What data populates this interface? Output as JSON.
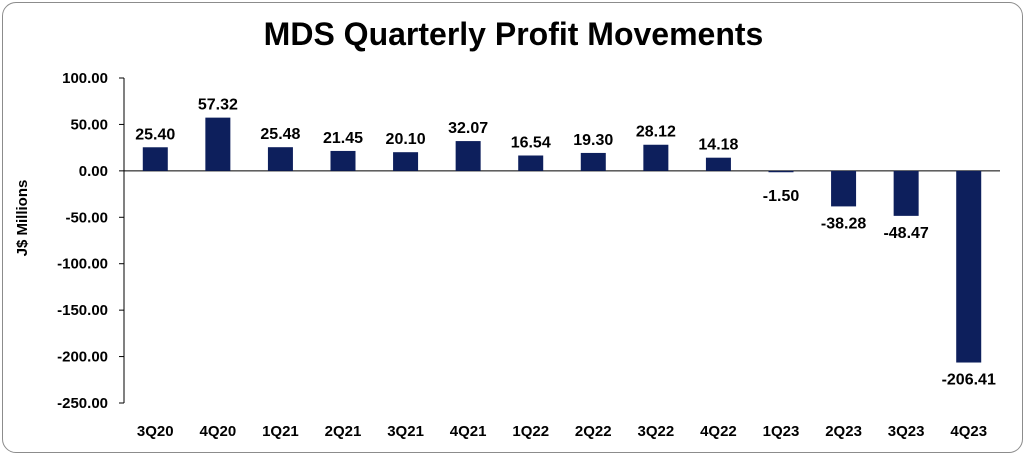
{
  "chart_data": {
    "type": "bar",
    "title": "MDS Quarterly Profit Movements",
    "xlabel": "",
    "ylabel": "J$ Millions",
    "categories": [
      "3Q20",
      "4Q20",
      "1Q21",
      "2Q21",
      "3Q21",
      "4Q21",
      "1Q22",
      "2Q22",
      "3Q22",
      "4Q22",
      "1Q23",
      "2Q23",
      "3Q23",
      "4Q23"
    ],
    "values": [
      25.4,
      57.32,
      25.48,
      21.45,
      20.1,
      32.07,
      16.54,
      19.3,
      28.12,
      14.18,
      -1.5,
      -38.28,
      -48.47,
      -206.41
    ],
    "value_labels": [
      "25.40",
      "57.32",
      "25.48",
      "21.45",
      "20.10",
      "32.07",
      "16.54",
      "19.30",
      "28.12",
      "14.18",
      "-1.50",
      "-38.28",
      "-48.47",
      "-206.41"
    ],
    "ylim": [
      -250,
      100
    ],
    "yticks": [
      100,
      50,
      0,
      -50,
      -100,
      -150,
      -200,
      -250
    ],
    "ytick_labels": [
      "100.00",
      "50.00",
      "0.00",
      "-50.00",
      "-100.00",
      "-150.00",
      "-200.00",
      "-250.00"
    ],
    "bar_color": "#0d1f5c",
    "grid": false,
    "legend": "none"
  }
}
